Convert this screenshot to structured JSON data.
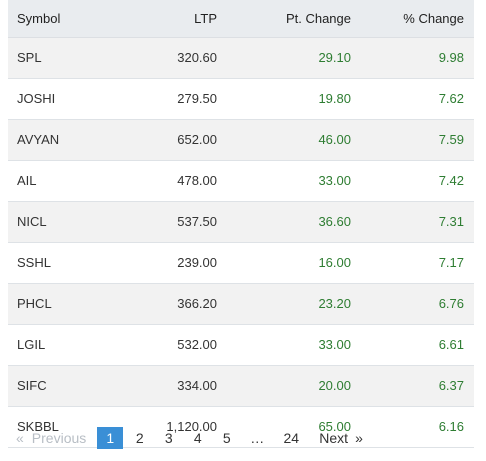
{
  "table": {
    "headers": {
      "symbol": "Symbol",
      "ltp": "LTP",
      "pt_change": "Pt. Change",
      "pct_change": "% Change"
    },
    "rows": [
      {
        "symbol": "SPL",
        "ltp": "320.60",
        "pt_change": "29.10",
        "pct_change": "9.98"
      },
      {
        "symbol": "JOSHI",
        "ltp": "279.50",
        "pt_change": "19.80",
        "pct_change": "7.62"
      },
      {
        "symbol": "AVYAN",
        "ltp": "652.00",
        "pt_change": "46.00",
        "pct_change": "7.59"
      },
      {
        "symbol": "AIL",
        "ltp": "478.00",
        "pt_change": "33.00",
        "pct_change": "7.42"
      },
      {
        "symbol": "NICL",
        "ltp": "537.50",
        "pt_change": "36.60",
        "pct_change": "7.31"
      },
      {
        "symbol": "SSHL",
        "ltp": "239.00",
        "pt_change": "16.00",
        "pct_change": "7.17"
      },
      {
        "symbol": "PHCL",
        "ltp": "366.20",
        "pt_change": "23.20",
        "pct_change": "6.76"
      },
      {
        "symbol": "LGIL",
        "ltp": "532.00",
        "pt_change": "33.00",
        "pct_change": "6.61"
      },
      {
        "symbol": "SIFC",
        "ltp": "334.00",
        "pt_change": "20.00",
        "pct_change": "6.37"
      },
      {
        "symbol": "SKBBL",
        "ltp": "1,120.00",
        "pt_change": "65.00",
        "pct_change": "6.16"
      }
    ]
  },
  "pagination": {
    "prev_arrow": "«",
    "prev_label": "Previous",
    "pages": [
      "1",
      "2",
      "3",
      "4",
      "5"
    ],
    "ellipsis": "…",
    "last_page": "24",
    "next_label": "Next",
    "next_arrow": "»",
    "current_page": "1"
  },
  "colors": {
    "positive": "#2e7d32",
    "active_page": "#3a8fd6",
    "header_bg": "#e9ecef",
    "stripe_bg": "#f2f2f2"
  },
  "icons": {
    "prev": "double-chevron-left-icon",
    "next": "double-chevron-right-icon"
  }
}
